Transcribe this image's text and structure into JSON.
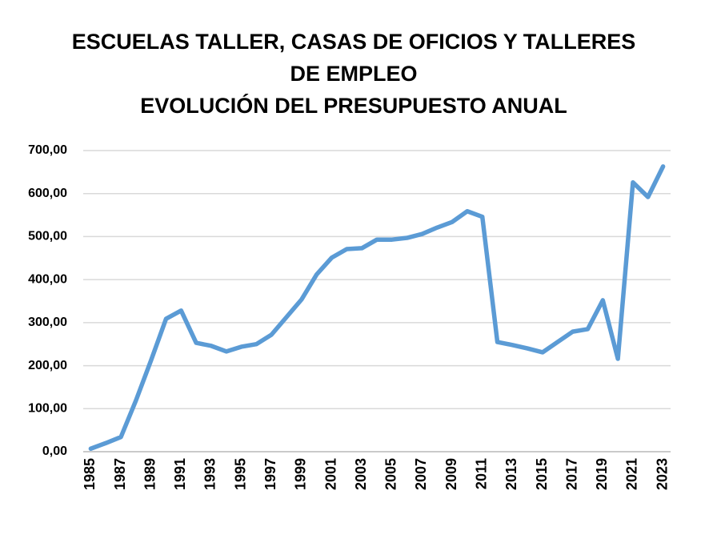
{
  "chart_data": {
    "type": "line",
    "title": [
      "ESCUELAS TALLER, CASAS DE OFICIOS Y TALLERES",
      "DE EMPLEO",
      "EVOLUCIÓN DEL PRESUPUESTO ANUAL"
    ],
    "categories": [
      "1985",
      null,
      "1987",
      null,
      "1989",
      null,
      "1991",
      null,
      "1993",
      null,
      "1995",
      null,
      "1997",
      null,
      "1999",
      null,
      "2001",
      null,
      "2003",
      null,
      "2005",
      null,
      "2007",
      null,
      "2009",
      null,
      "2011",
      null,
      "2013",
      null,
      "2015",
      null,
      "2017",
      null,
      "2019",
      null,
      "2021",
      null,
      "2023"
    ],
    "values": [
      7,
      20,
      34,
      119,
      212,
      309,
      328,
      253,
      246,
      233,
      244,
      250,
      272,
      313,
      354,
      412,
      451,
      471,
      473,
      493,
      493,
      497,
      506,
      521,
      534,
      559,
      546,
      255,
      248,
      240,
      231,
      255,
      279,
      285,
      352,
      216,
      626,
      592,
      663
    ],
    "color": "#5b9bd5",
    "ylim": [
      0,
      700
    ],
    "yticks": [
      {
        "value": 0,
        "label": "0,00"
      },
      {
        "value": 100,
        "label": "100,00"
      },
      {
        "value": 200,
        "label": "200,00"
      },
      {
        "value": 300,
        "label": "300,00"
      },
      {
        "value": 400,
        "label": "400,00"
      },
      {
        "value": 500,
        "label": "500,00"
      },
      {
        "value": 600,
        "label": "600,00"
      },
      {
        "value": 700,
        "label": "700,00"
      }
    ],
    "grid": true
  }
}
